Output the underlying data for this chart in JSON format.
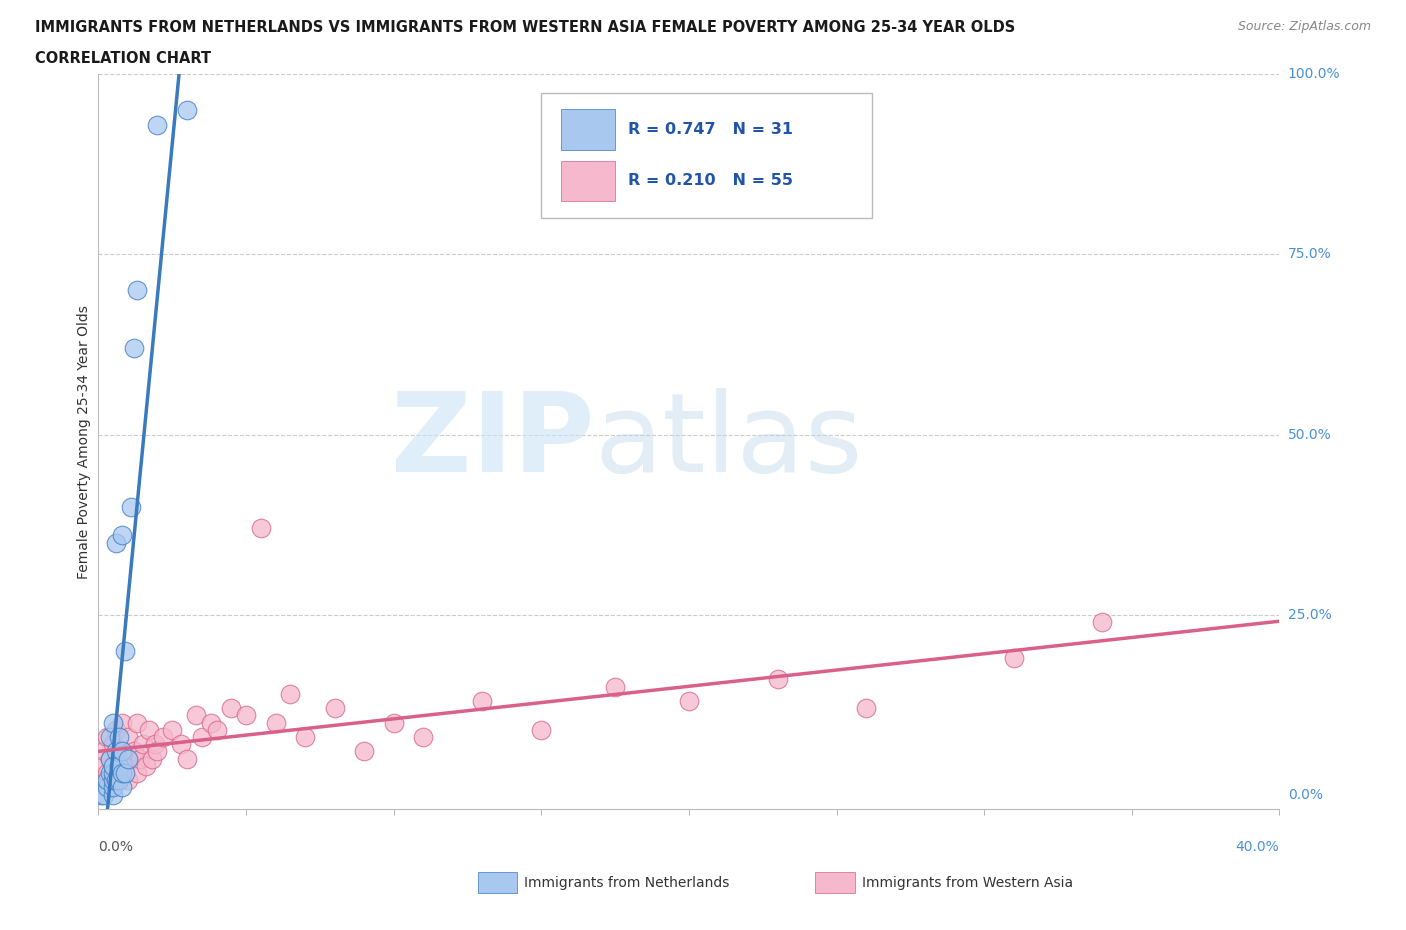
{
  "title_line1": "IMMIGRANTS FROM NETHERLANDS VS IMMIGRANTS FROM WESTERN ASIA FEMALE POVERTY AMONG 25-34 YEAR OLDS",
  "title_line2": "CORRELATION CHART",
  "source": "Source: ZipAtlas.com",
  "ylabel": "Female Poverty Among 25-34 Year Olds",
  "xlim": [
    0.0,
    0.4
  ],
  "ylim": [
    -0.02,
    1.0
  ],
  "color_nl": "#a8c8f0",
  "color_wa": "#f5b8cc",
  "line_color_nl": "#3a7abf",
  "line_color_wa": "#d9608a",
  "R_nl": 0.747,
  "N_nl": 31,
  "R_wa": 0.21,
  "N_wa": 55,
  "legend_label_nl": "Immigrants from Netherlands",
  "legend_label_wa": "Immigrants from Western Asia",
  "nl_x": [
    0.001,
    0.002,
    0.003,
    0.003,
    0.004,
    0.004,
    0.004,
    0.005,
    0.005,
    0.005,
    0.005,
    0.005,
    0.005,
    0.006,
    0.006,
    0.006,
    0.007,
    0.007,
    0.007,
    0.008,
    0.008,
    0.008,
    0.008,
    0.009,
    0.009,
    0.01,
    0.011,
    0.012,
    0.013,
    0.02,
    0.03
  ],
  "nl_y": [
    0.0,
    0.0,
    0.01,
    0.02,
    0.03,
    0.05,
    0.08,
    0.0,
    0.01,
    0.02,
    0.03,
    0.04,
    0.1,
    0.02,
    0.06,
    0.35,
    0.02,
    0.04,
    0.08,
    0.01,
    0.03,
    0.06,
    0.36,
    0.03,
    0.2,
    0.05,
    0.4,
    0.62,
    0.7,
    0.93,
    0.95
  ],
  "wa_x": [
    0.001,
    0.002,
    0.002,
    0.003,
    0.003,
    0.004,
    0.004,
    0.005,
    0.005,
    0.006,
    0.006,
    0.007,
    0.007,
    0.008,
    0.008,
    0.009,
    0.01,
    0.01,
    0.011,
    0.012,
    0.013,
    0.013,
    0.014,
    0.015,
    0.016,
    0.017,
    0.018,
    0.019,
    0.02,
    0.022,
    0.025,
    0.028,
    0.03,
    0.033,
    0.035,
    0.038,
    0.04,
    0.045,
    0.05,
    0.055,
    0.06,
    0.065,
    0.07,
    0.08,
    0.09,
    0.1,
    0.11,
    0.13,
    0.15,
    0.175,
    0.2,
    0.23,
    0.26,
    0.31,
    0.34
  ],
  "wa_y": [
    0.04,
    0.02,
    0.06,
    0.03,
    0.08,
    0.01,
    0.05,
    0.02,
    0.07,
    0.03,
    0.09,
    0.02,
    0.06,
    0.03,
    0.1,
    0.04,
    0.02,
    0.08,
    0.05,
    0.06,
    0.03,
    0.1,
    0.05,
    0.07,
    0.04,
    0.09,
    0.05,
    0.07,
    0.06,
    0.08,
    0.09,
    0.07,
    0.05,
    0.11,
    0.08,
    0.1,
    0.09,
    0.12,
    0.11,
    0.37,
    0.1,
    0.14,
    0.08,
    0.12,
    0.06,
    0.1,
    0.08,
    0.13,
    0.09,
    0.15,
    0.13,
    0.16,
    0.12,
    0.19,
    0.24
  ]
}
